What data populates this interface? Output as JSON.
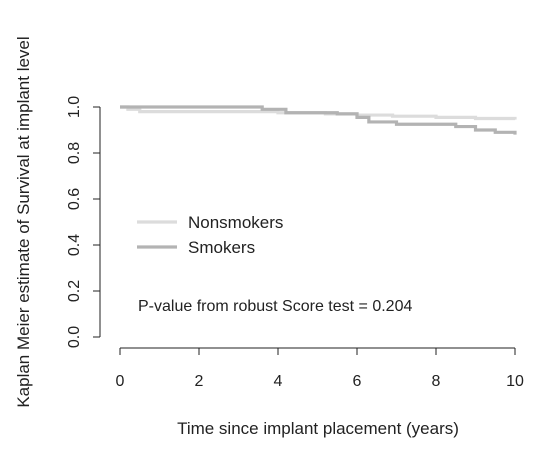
{
  "chart_data": {
    "type": "line",
    "step": true,
    "title": "",
    "xlabel": "Time since implant placement (years)",
    "ylabel": "Kaplan Meier estimate of Survival at implant level",
    "xlim": [
      0,
      10.0
    ],
    "ylim": [
      0,
      1.0
    ],
    "xticks": [
      0,
      2,
      4,
      6,
      8,
      10
    ],
    "yticks": [
      0.0,
      0.2,
      0.4,
      0.6,
      0.8,
      1.0
    ],
    "ytick_labels": [
      "0.0",
      "0.2",
      "0.4",
      "0.6",
      "0.8",
      "1.0"
    ],
    "grid": false,
    "legend_position": "center-left",
    "annotation": "P-value from robust Score test = 0.204",
    "series": [
      {
        "name": "Nonsmokers",
        "color": "#dcdcdc",
        "points": [
          [
            0,
            1.0
          ],
          [
            0.2,
            0.99
          ],
          [
            0.5,
            0.98
          ],
          [
            4.0,
            0.975
          ],
          [
            5.2,
            0.97
          ],
          [
            6.0,
            0.965
          ],
          [
            6.9,
            0.96
          ],
          [
            8.0,
            0.955
          ],
          [
            9.0,
            0.95
          ],
          [
            10.0,
            0.945
          ]
        ]
      },
      {
        "name": "Smokers",
        "color": "#b3b3b3",
        "points": [
          [
            0,
            1.0
          ],
          [
            3.6,
            0.99
          ],
          [
            4.2,
            0.975
          ],
          [
            5.5,
            0.97
          ],
          [
            6.0,
            0.955
          ],
          [
            6.3,
            0.935
          ],
          [
            7.0,
            0.925
          ],
          [
            8.5,
            0.915
          ],
          [
            9.0,
            0.9
          ],
          [
            9.5,
            0.89
          ],
          [
            10.0,
            0.88
          ]
        ]
      }
    ]
  }
}
